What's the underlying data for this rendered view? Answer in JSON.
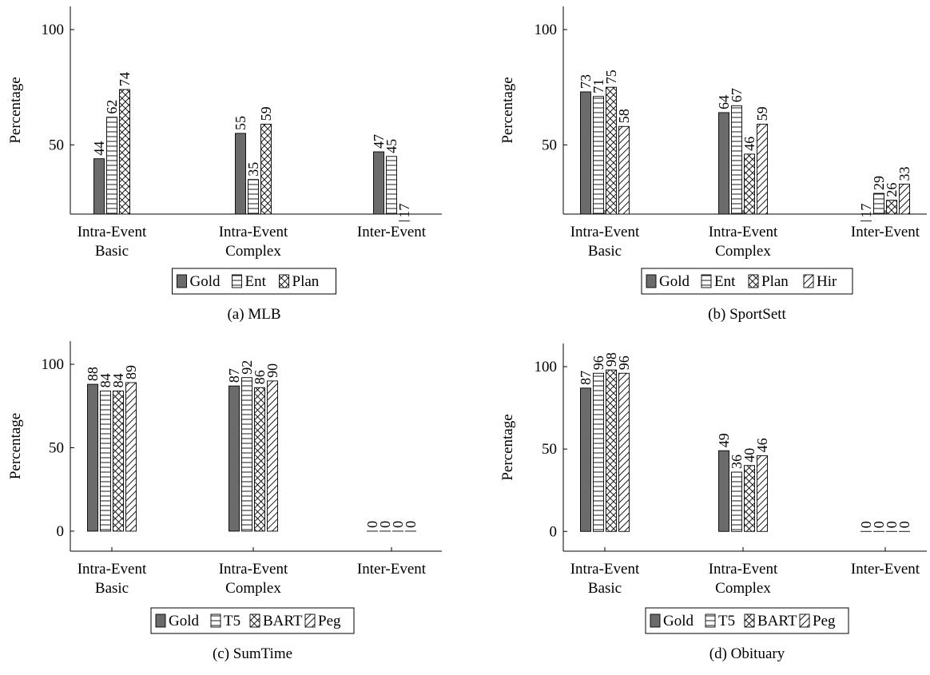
{
  "y_axis_label": "Percentage",
  "colors": {
    "gold": "#6b6b6b",
    "axis": "#000000",
    "pattern": "#000000"
  },
  "chart_data": [
    {
      "type": "bar",
      "caption": "(a) MLB",
      "ylabel": "Percentage",
      "ylim": [
        20,
        110
      ],
      "yticks": [
        50,
        100
      ],
      "categories": [
        [
          "Intra-Event",
          "Basic"
        ],
        [
          "Intra-Event",
          "Complex"
        ],
        [
          "Inter-Event"
        ]
      ],
      "legend_position": "bottom",
      "series": [
        {
          "name": "Gold",
          "pattern": "solid",
          "values": [
            44,
            55,
            47
          ]
        },
        {
          "name": "Ent",
          "pattern": "horizontal-lines",
          "values": [
            62,
            35,
            45
          ]
        },
        {
          "name": "Plan",
          "pattern": "crosshatch",
          "values": [
            74,
            59,
            17
          ]
        }
      ]
    },
    {
      "type": "bar",
      "caption": "(b) SportSett",
      "ylabel": "Percentage",
      "ylim": [
        20,
        110
      ],
      "yticks": [
        50,
        100
      ],
      "categories": [
        [
          "Intra-Event",
          "Basic"
        ],
        [
          "Intra-Event",
          "Complex"
        ],
        [
          "Inter-Event"
        ]
      ],
      "legend_position": "bottom",
      "series": [
        {
          "name": "Gold",
          "pattern": "solid",
          "values": [
            73,
            64,
            17
          ]
        },
        {
          "name": "Ent",
          "pattern": "horizontal-lines",
          "values": [
            71,
            67,
            29
          ]
        },
        {
          "name": "Plan",
          "pattern": "crosshatch",
          "values": [
            75,
            46,
            26
          ]
        },
        {
          "name": "Hir",
          "pattern": "diagonal-lines",
          "values": [
            58,
            59,
            33
          ]
        }
      ]
    },
    {
      "type": "bar",
      "caption": "(c) SumTime",
      "ylabel": "Percentage",
      "ylim": [
        -12,
        110
      ],
      "yticks": [
        0,
        50,
        100
      ],
      "categories": [
        [
          "Intra-Event",
          "Basic"
        ],
        [
          "Intra-Event",
          "Complex"
        ],
        [
          "Inter-Event"
        ]
      ],
      "legend_position": "bottom",
      "series": [
        {
          "name": "Gold",
          "pattern": "solid",
          "values": [
            88,
            87,
            0
          ]
        },
        {
          "name": "T5",
          "pattern": "horizontal-lines",
          "values": [
            84,
            92,
            0
          ]
        },
        {
          "name": "BART",
          "pattern": "crosshatch",
          "values": [
            84,
            86,
            0
          ]
        },
        {
          "name": "Peg",
          "pattern": "diagonal-lines",
          "values": [
            89,
            90,
            0
          ]
        }
      ]
    },
    {
      "type": "bar",
      "caption": "(d) Obituary",
      "ylabel": "Percentage",
      "ylim": [
        -12,
        110
      ],
      "yticks": [
        0,
        50,
        100
      ],
      "categories": [
        [
          "Intra-Event",
          "Basic"
        ],
        [
          "Intra-Event",
          "Complex"
        ],
        [
          "Inter-Event"
        ]
      ],
      "legend_position": "bottom",
      "series": [
        {
          "name": "Gold",
          "pattern": "solid",
          "values": [
            87,
            49,
            0
          ]
        },
        {
          "name": "T5",
          "pattern": "horizontal-lines",
          "values": [
            96,
            36,
            0
          ]
        },
        {
          "name": "BART",
          "pattern": "crosshatch",
          "values": [
            98,
            40,
            0
          ]
        },
        {
          "name": "Peg",
          "pattern": "diagonal-lines",
          "values": [
            96,
            46,
            0
          ]
        }
      ]
    }
  ]
}
